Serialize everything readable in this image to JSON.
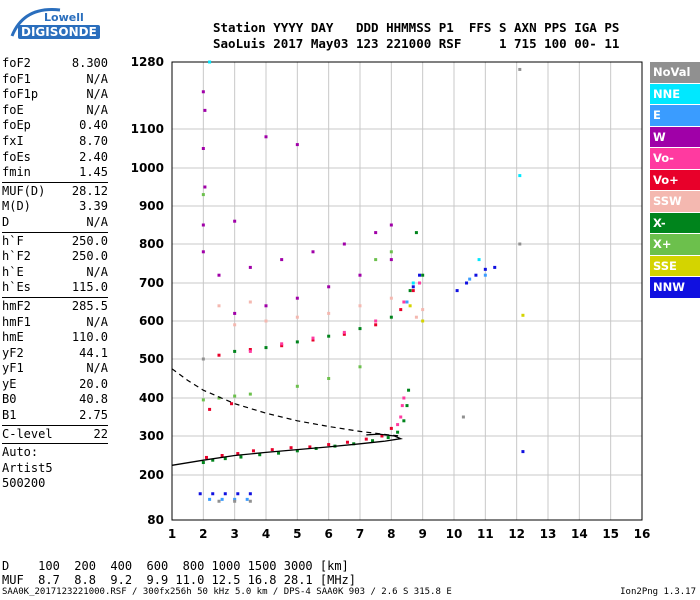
{
  "logo": {
    "top": "Lowell",
    "bottom": "DIGISONDE"
  },
  "header": {
    "line1": "Station YYYY DAY   DDD HHMMSS P1  FFS S AXN PPS IGA PS",
    "line2": "SaoLuis 2017 May03 123 221000 RSF     1 715 100 00- 11"
  },
  "params": {
    "group1": [
      {
        "name": "foF2",
        "value": "8.300"
      },
      {
        "name": "foF1",
        "value": "N/A"
      },
      {
        "name": "foF1p",
        "value": "N/A"
      },
      {
        "name": "foE",
        "value": "N/A"
      },
      {
        "name": "foEp",
        "value": "0.40"
      },
      {
        "name": "fxI",
        "value": "8.70"
      },
      {
        "name": "foEs",
        "value": "2.40"
      },
      {
        "name": "fmin",
        "value": "1.45"
      }
    ],
    "group2": [
      {
        "name": "MUF(D)",
        "value": "28.12"
      },
      {
        "name": "M(D)",
        "value": "3.39"
      },
      {
        "name": "D",
        "value": "N/A"
      }
    ],
    "group3": [
      {
        "name": "h`F",
        "value": "250.0"
      },
      {
        "name": "h`F2",
        "value": "250.0"
      },
      {
        "name": "h`E",
        "value": "N/A"
      },
      {
        "name": "h`Es",
        "value": "115.0"
      }
    ],
    "group4": [
      {
        "name": "hmF2",
        "value": "285.5"
      },
      {
        "name": "hmF1",
        "value": "N/A"
      },
      {
        "name": "hmE",
        "value": "110.0"
      },
      {
        "name": "yF2",
        "value": "44.1"
      },
      {
        "name": "yF1",
        "value": "N/A"
      },
      {
        "name": "yE",
        "value": "20.0"
      },
      {
        "name": "B0",
        "value": "40.8"
      },
      {
        "name": "B1",
        "value": "2.75"
      }
    ],
    "clevel": {
      "name": "C-level",
      "value": "22"
    },
    "auto": [
      "Auto:",
      "Artist5",
      "500200"
    ]
  },
  "legend": [
    {
      "label": "NoVal",
      "color": "#909090"
    },
    {
      "label": "NNE",
      "color": "#00e8ff"
    },
    {
      "label": "E",
      "color": "#3a9cff"
    },
    {
      "label": "W",
      "color": "#a000a8"
    },
    {
      "label": "Vo-",
      "color": "#ff3aa0"
    },
    {
      "label": "Vo+",
      "color": "#e8002a"
    },
    {
      "label": "SSW",
      "color": "#f4b8b0"
    },
    {
      "label": "X-",
      "color": "#00841c"
    },
    {
      "label": "X+",
      "color": "#6cc04c"
    },
    {
      "label": "SSE",
      "color": "#d4d400"
    },
    {
      "label": "NNW",
      "color": "#1010e0"
    }
  ],
  "chart_data": {
    "type": "scatter",
    "xlim": [
      1,
      16
    ],
    "ylim": [
      80,
      1280
    ],
    "x_ticks": [
      1,
      2,
      3,
      4,
      5,
      6,
      7,
      8,
      9,
      10,
      11,
      12,
      13,
      14,
      15,
      16
    ],
    "y_ticks": [
      80,
      200,
      300,
      400,
      500,
      600,
      700,
      800,
      900,
      1000,
      1100,
      1280
    ],
    "grid": true,
    "profile_curve": [
      [
        1.0,
        225
      ],
      [
        2,
        238
      ],
      [
        3,
        250
      ],
      [
        4,
        258
      ],
      [
        5,
        265
      ],
      [
        6,
        272
      ],
      [
        7,
        280
      ],
      [
        7.8,
        287
      ],
      [
        8.3,
        293
      ],
      [
        8.1,
        300
      ],
      [
        7.6,
        305
      ],
      [
        7.2,
        303
      ]
    ],
    "muf_curve": [
      [
        1.0,
        475
      ],
      [
        1.5,
        445
      ],
      [
        2,
        420
      ],
      [
        3,
        385
      ],
      [
        4,
        360
      ],
      [
        5,
        340
      ],
      [
        6,
        325
      ],
      [
        7,
        312
      ],
      [
        8,
        302
      ],
      [
        8.3,
        300
      ]
    ],
    "series": [
      {
        "name": "X-",
        "color": "#00841c",
        "points": [
          [
            2.0,
            232
          ],
          [
            2.3,
            238
          ],
          [
            2.7,
            242
          ],
          [
            3.2,
            246
          ],
          [
            3.8,
            252
          ],
          [
            4.4,
            256
          ],
          [
            5.0,
            262
          ],
          [
            5.6,
            268
          ],
          [
            6.2,
            274
          ],
          [
            6.8,
            280
          ],
          [
            7.4,
            288
          ],
          [
            7.9,
            296
          ],
          [
            8.2,
            310
          ],
          [
            8.4,
            340
          ],
          [
            8.5,
            380
          ],
          [
            8.55,
            420
          ],
          [
            3.0,
            520
          ],
          [
            4.0,
            530
          ],
          [
            5.0,
            545
          ],
          [
            6.0,
            560
          ],
          [
            7.0,
            580
          ],
          [
            8.0,
            610
          ],
          [
            8.6,
            680
          ],
          [
            9.0,
            720
          ],
          [
            8.8,
            830
          ]
        ]
      },
      {
        "name": "Vo+",
        "color": "#e8002a",
        "points": [
          [
            2.1,
            245
          ],
          [
            2.6,
            250
          ],
          [
            3.1,
            255
          ],
          [
            3.6,
            262
          ],
          [
            4.2,
            265
          ],
          [
            4.8,
            270
          ],
          [
            5.4,
            272
          ],
          [
            6.0,
            278
          ],
          [
            6.6,
            284
          ],
          [
            7.2,
            292
          ],
          [
            7.7,
            300
          ],
          [
            8.0,
            320
          ],
          [
            2.5,
            510
          ],
          [
            3.5,
            525
          ],
          [
            4.5,
            535
          ],
          [
            5.5,
            550
          ],
          [
            6.5,
            565
          ],
          [
            7.5,
            590
          ],
          [
            8.3,
            630
          ],
          [
            8.7,
            680
          ],
          [
            2.2,
            370
          ],
          [
            2.9,
            385
          ]
        ]
      },
      {
        "name": "Vo-",
        "color": "#ff3aa0",
        "points": [
          [
            8.3,
            350
          ],
          [
            8.35,
            380
          ],
          [
            8.4,
            400
          ],
          [
            8.2,
            330
          ],
          [
            3.5,
            520
          ],
          [
            4.5,
            540
          ],
          [
            5.5,
            555
          ],
          [
            6.5,
            570
          ],
          [
            7.5,
            600
          ],
          [
            8.4,
            650
          ],
          [
            8.9,
            700
          ]
        ]
      },
      {
        "name": "W",
        "color": "#a000a8",
        "points": [
          [
            2.0,
            1200
          ],
          [
            2.05,
            1150
          ],
          [
            2.0,
            1050
          ],
          [
            2.05,
            950
          ],
          [
            2.0,
            850
          ],
          [
            2.0,
            780
          ],
          [
            3.0,
            620
          ],
          [
            4.0,
            640
          ],
          [
            5.0,
            660
          ],
          [
            6.0,
            690
          ],
          [
            7.0,
            720
          ],
          [
            8.0,
            760
          ],
          [
            2.5,
            720
          ],
          [
            3.5,
            740
          ],
          [
            4.5,
            760
          ],
          [
            5.5,
            780
          ],
          [
            6.5,
            800
          ],
          [
            7.5,
            830
          ],
          [
            8.0,
            850
          ],
          [
            4.0,
            1080
          ],
          [
            5.0,
            1060
          ],
          [
            3.0,
            860
          ]
        ]
      },
      {
        "name": "NNW",
        "color": "#1010e0",
        "points": [
          [
            1.9,
            150
          ],
          [
            2.3,
            150
          ],
          [
            2.7,
            150
          ],
          [
            3.1,
            150
          ],
          [
            3.5,
            150
          ],
          [
            10.1,
            680
          ],
          [
            10.4,
            700
          ],
          [
            10.7,
            720
          ],
          [
            11.0,
            735
          ],
          [
            11.3,
            740
          ],
          [
            8.7,
            690
          ],
          [
            8.9,
            720
          ],
          [
            12.2,
            260
          ]
        ]
      },
      {
        "name": "E",
        "color": "#3a9cff",
        "points": [
          [
            2.2,
            135
          ],
          [
            2.6,
            135
          ],
          [
            3.0,
            135
          ],
          [
            3.4,
            135
          ],
          [
            10.5,
            710
          ],
          [
            11.0,
            720
          ],
          [
            8.5,
            650
          ]
        ]
      },
      {
        "name": "NNE",
        "color": "#00e8ff",
        "points": [
          [
            2.2,
            1280
          ],
          [
            12.1,
            980
          ],
          [
            10.8,
            760
          ],
          [
            8.7,
            700
          ]
        ]
      },
      {
        "name": "SSW",
        "color": "#f4b8b0",
        "points": [
          [
            3.0,
            590
          ],
          [
            4.0,
            600
          ],
          [
            5.0,
            610
          ],
          [
            6.0,
            620
          ],
          [
            7.0,
            640
          ],
          [
            8.0,
            660
          ],
          [
            8.8,
            610
          ],
          [
            9.0,
            630
          ],
          [
            2.5,
            640
          ],
          [
            3.5,
            650
          ]
        ]
      },
      {
        "name": "X+",
        "color": "#6cc04c",
        "points": [
          [
            2.0,
            395
          ],
          [
            2.5,
            400
          ],
          [
            3.0,
            405
          ],
          [
            3.5,
            410
          ],
          [
            5.0,
            430
          ],
          [
            6.0,
            450
          ],
          [
            7.0,
            480
          ],
          [
            2.0,
            930
          ],
          [
            7.5,
            760
          ],
          [
            8.0,
            780
          ]
        ]
      },
      {
        "name": "SSE",
        "color": "#d4d400",
        "points": [
          [
            12.2,
            615
          ],
          [
            8.6,
            640
          ],
          [
            9.0,
            600
          ]
        ]
      },
      {
        "name": "NoVal",
        "color": "#909090",
        "points": [
          [
            2.5,
            130
          ],
          [
            3.0,
            130
          ],
          [
            3.5,
            130
          ],
          [
            2.0,
            500
          ],
          [
            10.3,
            350
          ],
          [
            12.1,
            1260
          ],
          [
            12.1,
            800
          ]
        ]
      }
    ]
  },
  "footer": {
    "line1": "D    100  200  400  600  800 1000 1500 3000 [km]",
    "line2": "MUF  8.7  8.8  9.2  9.9 11.0 12.5 16.8 28.1 [MHz]",
    "file": "SAA0K_2017123221000.RSF / 300fx256h 50 kHz 5.0 km / DPS-4 SAA0K 903 / 2.6 S 315.8 E",
    "version": "Ion2Png 1.3.17"
  }
}
